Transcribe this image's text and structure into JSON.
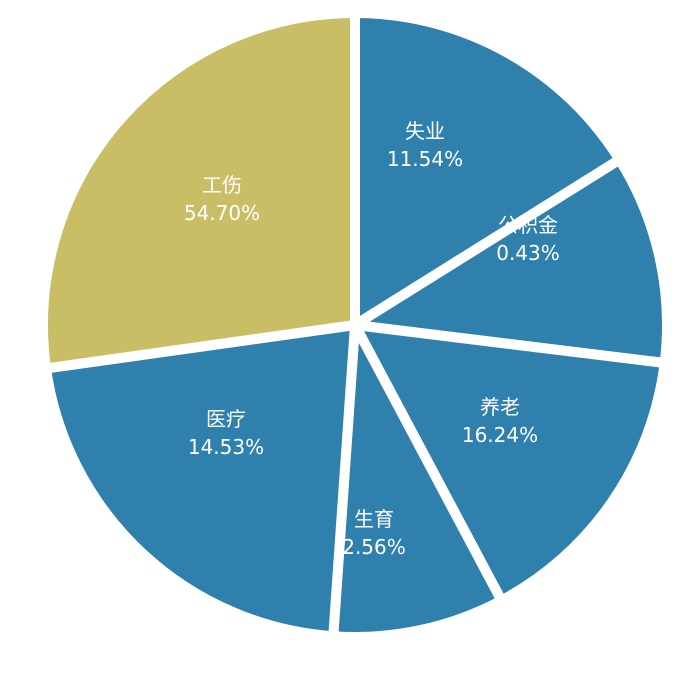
{
  "chart_data": {
    "type": "pie",
    "slices": [
      {
        "label": "失业",
        "value_text": "11.54%",
        "value": 11.54,
        "color": "#2f80ad"
      },
      {
        "label": "公积金",
        "value_text": "0.43%",
        "value": 0.43,
        "color": "#2f80ad"
      },
      {
        "label": "养老",
        "value_text": "16.24%",
        "value": 16.24,
        "color": "#2f80ad"
      },
      {
        "label": "生育",
        "value_text": "2.56%",
        "value": 2.56,
        "color": "#2f80ad"
      },
      {
        "label": "医疗",
        "value_text": "14.53%",
        "value": 14.53,
        "color": "#2f80ad"
      },
      {
        "label": "工伤",
        "value_text": "54.70%",
        "value": 54.7,
        "color": "#c9bd66"
      }
    ]
  }
}
